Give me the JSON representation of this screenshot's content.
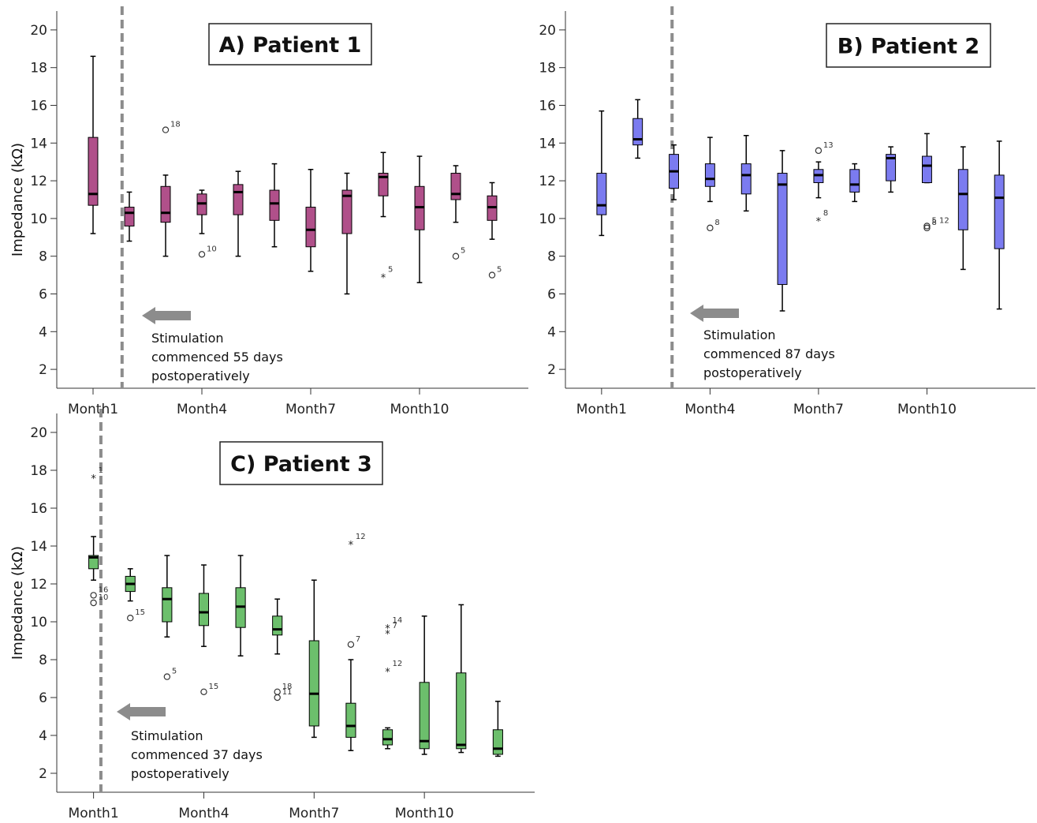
{
  "chart_data": [
    {
      "id": "p1",
      "type": "box",
      "title": "A) Patient 1",
      "ylabel": "Impedance (kΩ)",
      "ylim": [
        1,
        21
      ],
      "yticks": [
        2,
        4,
        6,
        8,
        10,
        12,
        14,
        16,
        18,
        20
      ],
      "xticks": [
        {
          "pos": 1,
          "label": "Month1"
        },
        {
          "pos": 4,
          "label": "Month4"
        },
        {
          "pos": 7,
          "label": "Month7"
        },
        {
          "pos": 10,
          "label": "Month10"
        }
      ],
      "xlim": [
        0,
        13
      ],
      "color": "#b0508a",
      "stimulation_line_x": 1.8,
      "annotation": [
        "Stimulation",
        "commenced 55 days",
        "postoperatively"
      ],
      "boxes": [
        {
          "x": 1,
          "min": 9.2,
          "q1": 10.7,
          "median": 11.3,
          "q3": 14.3,
          "max": 18.6
        },
        {
          "x": 2,
          "min": 8.8,
          "q1": 9.6,
          "median": 10.3,
          "q3": 10.6,
          "max": 11.4
        },
        {
          "x": 3,
          "min": 8.0,
          "q1": 9.8,
          "median": 10.3,
          "q3": 11.7,
          "max": 12.3
        },
        {
          "x": 4,
          "min": 9.2,
          "q1": 10.2,
          "median": 10.8,
          "q3": 11.3,
          "max": 11.5
        },
        {
          "x": 5,
          "min": 8.0,
          "q1": 10.2,
          "median": 11.4,
          "q3": 11.8,
          "max": 12.5
        },
        {
          "x": 6,
          "min": 8.5,
          "q1": 9.9,
          "median": 10.8,
          "q3": 11.5,
          "max": 12.9
        },
        {
          "x": 7,
          "min": 7.2,
          "q1": 8.5,
          "median": 9.4,
          "q3": 10.6,
          "max": 12.6
        },
        {
          "x": 8,
          "min": 6.0,
          "q1": 9.2,
          "median": 11.2,
          "q3": 11.5,
          "max": 12.4
        },
        {
          "x": 9,
          "min": 10.1,
          "q1": 11.2,
          "median": 12.2,
          "q3": 12.4,
          "max": 13.5
        },
        {
          "x": 10,
          "min": 6.6,
          "q1": 9.4,
          "median": 10.6,
          "q3": 11.7,
          "max": 13.3
        },
        {
          "x": 11,
          "min": 9.8,
          "q1": 11.0,
          "median": 11.3,
          "q3": 12.4,
          "max": 12.8
        },
        {
          "x": 12,
          "min": 8.9,
          "q1": 9.9,
          "median": 10.6,
          "q3": 11.2,
          "max": 11.9
        }
      ],
      "outliers": [
        {
          "x": 3,
          "y": 14.7,
          "marker": "o",
          "label": "18"
        },
        {
          "x": 4,
          "y": 8.1,
          "marker": "o",
          "label": "10"
        },
        {
          "x": 9,
          "y": 7.0,
          "marker": "*",
          "label": "5"
        },
        {
          "x": 11,
          "y": 8.0,
          "marker": "o",
          "label": "5"
        },
        {
          "x": 12,
          "y": 7.0,
          "marker": "o",
          "label": "5"
        }
      ]
    },
    {
      "id": "p2",
      "type": "box",
      "title": "B) Patient 2",
      "ylabel": "",
      "ylim": [
        1,
        21
      ],
      "yticks": [
        2,
        4,
        6,
        8,
        10,
        12,
        14,
        16,
        18,
        20
      ],
      "xticks": [
        {
          "pos": 1,
          "label": "Month1"
        },
        {
          "pos": 4,
          "label": "Month4"
        },
        {
          "pos": 7,
          "label": "Month7"
        },
        {
          "pos": 10,
          "label": "Month10"
        }
      ],
      "xlim": [
        0,
        13
      ],
      "color": "#7b7bf0",
      "stimulation_line_x": 2.95,
      "annotation": [
        "Stimulation",
        "commenced 87 days",
        "postoperatively"
      ],
      "boxes": [
        {
          "x": 1,
          "min": 9.1,
          "q1": 10.2,
          "median": 10.7,
          "q3": 12.4,
          "max": 15.7
        },
        {
          "x": 2,
          "min": 13.2,
          "q1": 13.9,
          "median": 14.2,
          "q3": 15.3,
          "max": 16.3
        },
        {
          "x": 3,
          "min": 11.0,
          "q1": 11.6,
          "median": 12.5,
          "q3": 13.4,
          "max": 13.9
        },
        {
          "x": 4,
          "min": 10.9,
          "q1": 11.7,
          "median": 12.1,
          "q3": 12.9,
          "max": 14.3
        },
        {
          "x": 5,
          "min": 10.4,
          "q1": 11.3,
          "median": 12.3,
          "q3": 12.9,
          "max": 14.4
        },
        {
          "x": 6,
          "min": 5.1,
          "q1": 6.5,
          "median": 11.8,
          "q3": 12.4,
          "max": 13.6
        },
        {
          "x": 7,
          "min": 11.1,
          "q1": 11.9,
          "median": 12.3,
          "q3": 12.6,
          "max": 13.0
        },
        {
          "x": 8,
          "min": 10.9,
          "q1": 11.4,
          "median": 11.8,
          "q3": 12.6,
          "max": 12.9
        },
        {
          "x": 9,
          "min": 11.4,
          "q1": 12.0,
          "median": 13.2,
          "q3": 13.4,
          "max": 13.8
        },
        {
          "x": 10,
          "min": 11.9,
          "q1": 11.9,
          "median": 12.8,
          "q3": 13.3,
          "max": 14.5
        },
        {
          "x": 11,
          "min": 7.3,
          "q1": 9.4,
          "median": 11.3,
          "q3": 12.6,
          "max": 13.8
        },
        {
          "x": 12,
          "min": 5.2,
          "q1": 8.4,
          "median": 11.1,
          "q3": 12.3,
          "max": 14.1
        }
      ],
      "outliers": [
        {
          "x": 4,
          "y": 9.5,
          "marker": "o",
          "label": "8"
        },
        {
          "x": 7,
          "y": 13.6,
          "marker": "o",
          "label": "13"
        },
        {
          "x": 7,
          "y": 10.0,
          "marker": "*",
          "label": "8"
        },
        {
          "x": 10,
          "y": 9.6,
          "marker": "o",
          "label": "5 12"
        },
        {
          "x": 10,
          "y": 9.5,
          "marker": "o",
          "label": "8"
        }
      ]
    },
    {
      "id": "p3",
      "type": "box",
      "title": "C) Patient 3",
      "ylabel": "Impedance (kΩ)",
      "ylim": [
        1,
        21
      ],
      "yticks": [
        2,
        4,
        6,
        8,
        10,
        12,
        14,
        16,
        18,
        20
      ],
      "xticks": [
        {
          "pos": 1,
          "label": "Month1"
        },
        {
          "pos": 4,
          "label": "Month4"
        },
        {
          "pos": 7,
          "label": "Month7"
        },
        {
          "pos": 10,
          "label": "Month10"
        }
      ],
      "xlim": [
        0,
        13
      ],
      "color": "#6cbf6c",
      "stimulation_line_x": 1.2,
      "annotation": [
        "Stimulation",
        "commenced 37 days",
        "postoperatively"
      ],
      "boxes": [
        {
          "x": 1,
          "min": 12.2,
          "q1": 12.8,
          "median": 13.4,
          "q3": 13.5,
          "max": 14.5
        },
        {
          "x": 2,
          "min": 11.1,
          "q1": 11.6,
          "median": 12.0,
          "q3": 12.4,
          "max": 12.8
        },
        {
          "x": 3,
          "min": 9.2,
          "q1": 10.0,
          "median": 11.2,
          "q3": 11.8,
          "max": 13.5
        },
        {
          "x": 4,
          "min": 8.7,
          "q1": 9.8,
          "median": 10.5,
          "q3": 11.5,
          "max": 13.0
        },
        {
          "x": 5,
          "min": 8.2,
          "q1": 9.7,
          "median": 10.8,
          "q3": 11.8,
          "max": 13.5
        },
        {
          "x": 6,
          "min": 8.3,
          "q1": 9.3,
          "median": 9.6,
          "q3": 10.3,
          "max": 11.2
        },
        {
          "x": 7,
          "min": 3.9,
          "q1": 4.5,
          "median": 6.2,
          "q3": 9.0,
          "max": 12.2
        },
        {
          "x": 8,
          "min": 3.2,
          "q1": 3.9,
          "median": 4.5,
          "q3": 5.7,
          "max": 8.0
        },
        {
          "x": 9,
          "min": 3.3,
          "q1": 3.5,
          "median": 3.8,
          "q3": 4.3,
          "max": 4.4
        },
        {
          "x": 10,
          "min": 3.0,
          "q1": 3.3,
          "median": 3.7,
          "q3": 6.8,
          "max": 10.3
        },
        {
          "x": 11,
          "min": 3.1,
          "q1": 3.3,
          "median": 3.5,
          "q3": 7.3,
          "max": 10.9
        },
        {
          "x": 12,
          "min": 2.9,
          "q1": 3.0,
          "median": 3.3,
          "q3": 4.3,
          "max": 5.8
        }
      ],
      "outliers": [
        {
          "x": 1,
          "y": 17.7,
          "marker": "*",
          "label": "1"
        },
        {
          "x": 1,
          "y": 11.4,
          "marker": "o",
          "label": "16"
        },
        {
          "x": 1,
          "y": 11.0,
          "marker": "o",
          "label": "10"
        },
        {
          "x": 2,
          "y": 10.2,
          "marker": "o",
          "label": "15"
        },
        {
          "x": 3,
          "y": 7.1,
          "marker": "o",
          "label": "5"
        },
        {
          "x": 4,
          "y": 6.3,
          "marker": "o",
          "label": "15"
        },
        {
          "x": 6,
          "y": 6.3,
          "marker": "o",
          "label": "18"
        },
        {
          "x": 6,
          "y": 6.0,
          "marker": "o",
          "label": "11"
        },
        {
          "x": 8,
          "y": 14.2,
          "marker": "*",
          "label": "12"
        },
        {
          "x": 8,
          "y": 8.8,
          "marker": "o",
          "label": "7"
        },
        {
          "x": 9,
          "y": 9.8,
          "marker": "*",
          "label": "14"
        },
        {
          "x": 9,
          "y": 9.5,
          "marker": "*",
          "label": "7"
        },
        {
          "x": 9,
          "y": 7.5,
          "marker": "*",
          "label": "12"
        }
      ]
    }
  ]
}
